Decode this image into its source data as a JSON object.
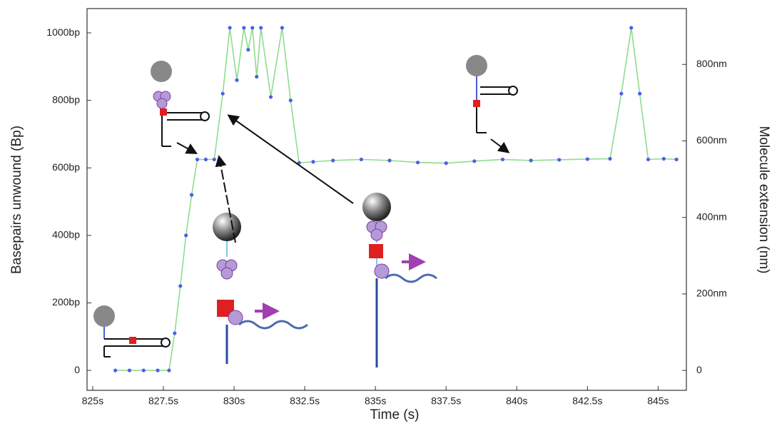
{
  "chart_data": {
    "type": "line",
    "x_label": "Time (s)",
    "y_label": "Basepairs unwound (Bp)",
    "y2_label": "Molecule extension (nm)",
    "color": "#4d5fe6",
    "x": [
      825.8,
      826.3,
      826.8,
      827.3,
      827.7,
      827.9,
      828.1,
      828.3,
      828.5,
      828.7,
      829.0,
      829.3,
      829.6,
      829.85,
      830.1,
      830.35,
      830.5,
      830.65,
      830.8,
      830.95,
      831.3,
      831.7,
      832.0,
      832.3,
      832.8,
      833.5,
      834.5,
      835.5,
      836.5,
      837.5,
      838.5,
      839.5,
      840.5,
      841.5,
      842.5,
      843.3,
      843.7,
      844.05,
      844.35,
      844.65,
      845.2,
      845.65
    ],
    "values": [
      0,
      0,
      0,
      0,
      0,
      110,
      250,
      400,
      520,
      625,
      625,
      625,
      820,
      1015,
      860,
      1015,
      950,
      1015,
      870,
      1015,
      810,
      1015,
      800,
      615,
      618,
      622,
      625,
      622,
      616,
      614,
      620,
      625,
      622,
      624,
      626,
      627,
      820,
      1015,
      820,
      625,
      627,
      625
    ],
    "xlim": [
      824.8,
      846.0
    ],
    "ylim": [
      -59,
      1072
    ],
    "y2lim": [
      -52,
      946
    ],
    "xticks": [
      {
        "value": 825,
        "label": "825s"
      },
      {
        "value": 827.5,
        "label": "827.5s"
      },
      {
        "value": 830,
        "label": "830s"
      },
      {
        "value": 832.5,
        "label": "832.5s"
      },
      {
        "value": 835,
        "label": "835s"
      },
      {
        "value": 837.5,
        "label": "837.5s"
      },
      {
        "value": 840,
        "label": "840s"
      },
      {
        "value": 842.5,
        "label": "842.5s"
      },
      {
        "value": 845,
        "label": "845s"
      }
    ],
    "yticks": [
      0,
      {
        "value": 200,
        "label": "200bp"
      },
      {
        "value": 400,
        "label": "400bp"
      },
      {
        "value": 600,
        "label": "600bp"
      },
      {
        "value": 800,
        "label": "800bp"
      },
      {
        "value": 1000,
        "label": "1000bp"
      }
    ],
    "y2ticks": [
      0,
      {
        "value": 200,
        "label": "200nm"
      },
      {
        "value": 400,
        "label": "400nm"
      },
      {
        "value": 600,
        "label": "600nm"
      },
      {
        "value": 800,
        "label": "800nm"
      }
    ]
  }
}
